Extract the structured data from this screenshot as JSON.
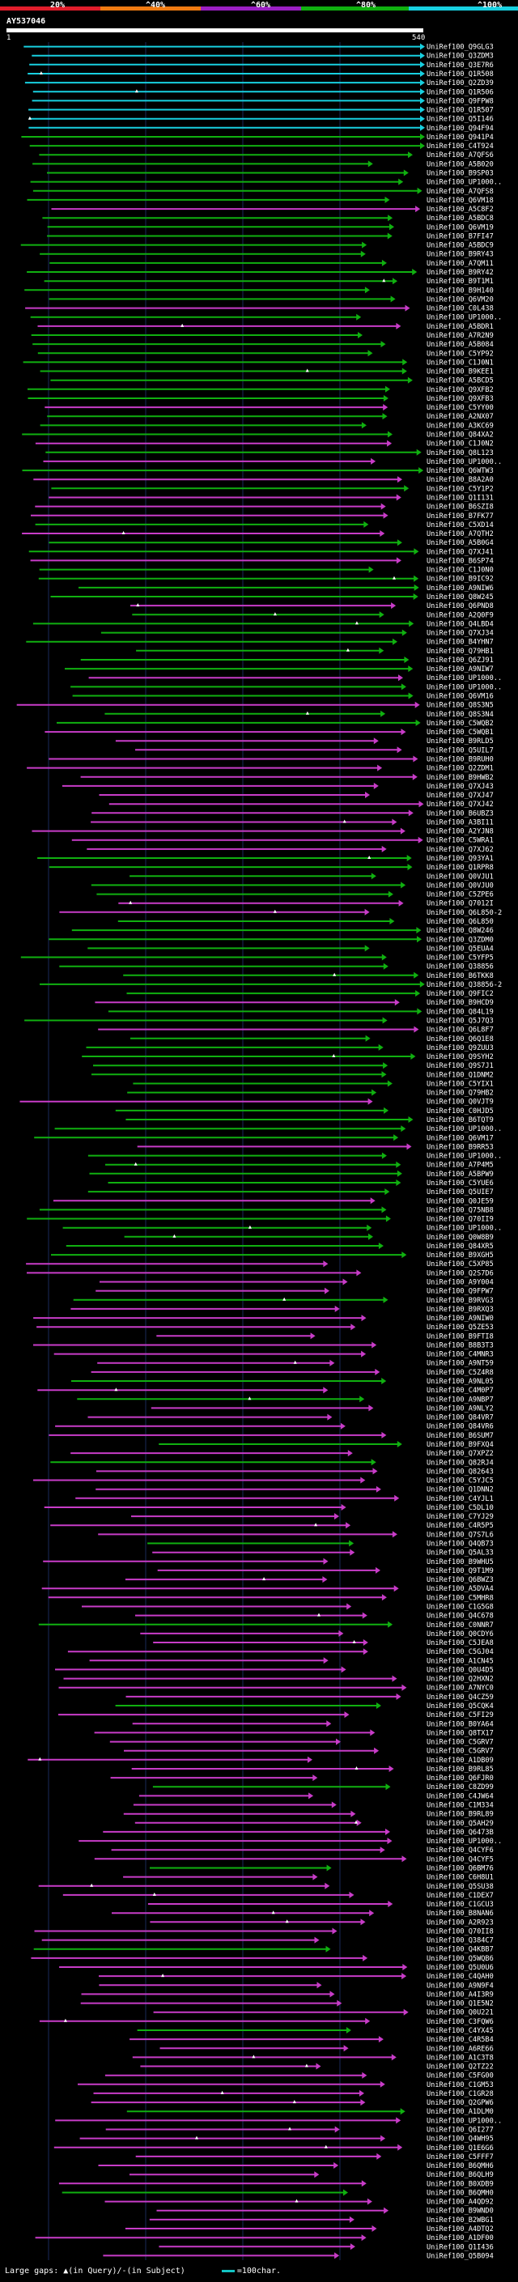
{
  "title": "AY537046",
  "scale": {
    "labels": [
      "20%",
      "^40%",
      "^60%",
      "^80%",
      "^100%"
    ]
  },
  "chart_data": {
    "type": "alignment",
    "query_start": 1,
    "query_end": 540,
    "identity_color_bands": [
      {
        "range": "<20%",
        "color": "#e11d2b"
      },
      {
        "range": "20-40%",
        "color": "#f07b12"
      },
      {
        "range": "40-60%",
        "color": "#9b1fc4"
      },
      {
        "range": "60-80%",
        "color": "#10b010"
      },
      {
        "range": "80-100%",
        "color": "#18d0e0"
      }
    ],
    "hits": [
      "UniRef100_Q9GLG3",
      "UniRef100_Q3ZDM3",
      "UniRef100_Q3E7R6",
      "UniRef100_Q1R508",
      "UniRef100_Q2ZD39",
      "UniRef100_Q1R506",
      "UniRef100_Q9FPW8",
      "UniRef100_Q1R507",
      "UniRef100_Q5I146",
      "UniRef100_Q94F94",
      "UniRef100_Q941P4",
      "UniRef100_C4T924",
      "UniRef100_A7QFS6",
      "UniRef100_A5B020",
      "UniRef100_B9SP03",
      "UniRef100_UP1000..",
      "UniRef100_A7QFS8",
      "UniRef100_Q6VM18",
      "UniRef100_A5C8F2",
      "UniRef100_A5BDC8",
      "UniRef100_Q6VM19",
      "UniRef100_B7FI47",
      "UniRef100_A5BDC9",
      "UniRef100_B9RY43",
      "UniRef100_A7QM11",
      "UniRef100_B9RY42",
      "UniRef100_B9T1M1",
      "UniRef100_B9H140",
      "UniRef100_Q6VM20",
      "UniRef100_C0L438",
      "UniRef100_UP1000..",
      "UniRef100_A5BDR1",
      "UniRef100_A7R2N9",
      "UniRef100_A5B084",
      "UniRef100_C5YP92",
      "UniRef100_C1J0N1",
      "UniRef100_B9KEE1",
      "UniRef100_A5BCD5",
      "UniRef100_Q9XFB2",
      "UniRef100_Q9XFB3",
      "UniRef100_C5YY00",
      "UniRef100_A2NX07",
      "UniRef100_A3KC69",
      "UniRef100_Q84XA2",
      "UniRef100_C1J0N2",
      "UniRef100_Q8L123",
      "UniRef100_UP1000..",
      "UniRef100_Q6WTW3",
      "UniRef100_B8A2A0",
      "UniRef100_C5Y1P2",
      "UniRef100_Q1I131",
      "UniRef100_B6SZI8",
      "UniRef100_B7FK77",
      "UniRef100_C5XD14",
      "UniRef100_A7QTH2",
      "UniRef100_A5B0G4",
      "UniRef100_Q7XJ41",
      "UniRef100_B6SP74",
      "UniRef100_C1J0N0",
      "UniRef100_B9IC92",
      "UniRef100_A9NIW6",
      "UniRef100_Q8W245",
      "UniRef100_Q6PND8",
      "UniRef100_A2Q0F9",
      "UniRef100_Q4LBD4",
      "UniRef100_Q7XJ34",
      "UniRef100_B4YHN7",
      "UniRef100_Q79HB1",
      "UniRef100_Q6ZJ91",
      "UniRef100_A9NIW7",
      "UniRef100_UP1000..",
      "UniRef100_UP1000..",
      "UniRef100_Q6VM16",
      "UniRef100_Q8S3N5",
      "UniRef100_Q8S3N4",
      "UniRef100_C5WQB2",
      "UniRef100_C5WQB1",
      "UniRef100_B9RLD5",
      "UniRef100_Q5UIL7",
      "UniRef100_B9RUH0",
      "UniRef100_Q2ZDM1",
      "UniRef100_B9HWB2",
      "UniRef100_Q7XJ43",
      "UniRef100_Q7XJ47",
      "UniRef100_Q7XJ42",
      "UniRef100_B6UBZ3",
      "UniRef100_A3BI11",
      "UniRef100_A2YJN8",
      "UniRef100_C5WRA1",
      "UniRef100_Q7XJ62",
      "UniRef100_Q93YA1",
      "UniRef100_Q1RPR8",
      "UniRef100_Q0VJU1",
      "UniRef100_Q0VJU0",
      "UniRef100_C5ZPE6",
      "UniRef100_Q7012I",
      "UniRef100_Q6L850-2",
      "UniRef100_Q6L850",
      "UniRef100_Q8W246",
      "UniRef100_Q3ZDM0",
      "UniRef100_Q5EUA4",
      "UniRef100_C5YFP5",
      "UniRef100_Q38856",
      "UniRef100_B6TKK8",
      "UniRef100_Q38856-2",
      "UniRef100_Q9FIC2",
      "UniRef100_B9HCD9",
      "UniRef100_Q84L19",
      "UniRef100_Q5J7Q3",
      "UniRef100_Q6L8F7",
      "UniRef100_Q6Q1E8",
      "UniRef100_Q9ZUU3",
      "UniRef100_Q9SYH2",
      "UniRef100_Q9S7J1",
      "UniRef100_Q1DNM2",
      "UniRef100_C5YIX1",
      "UniRef100_Q79HB2",
      "UniRef100_Q0VJT9",
      "UniRef100_C0HJD5",
      "UniRef100_B6TQT9",
      "UniRef100_UP1000..",
      "UniRef100_Q6VM17",
      "UniRef100_B9RR53",
      "UniRef100_UP1000..",
      "UniRef100_A7P4M5",
      "UniRef100_A5BPW9",
      "UniRef100_C5YUE6",
      "UniRef100_Q5UIE7",
      "UniRef100_Q0JE59",
      "UniRef100_Q75NB8",
      "UniRef100_Q70II9",
      "UniRef100_UP1000..",
      "UniRef100_Q0W8B9",
      "UniRef100_Q84XR5",
      "UniRef100_B9XGH5",
      "UniRef100_C5XP85",
      "UniRef100_Q2S7D6",
      "UniRef100_A9Y004",
      "UniRef100_Q9FPW7",
      "UniRef100_B9RVG3",
      "UniRef100_B9RXQ3",
      "UniRef100_A9NIW0",
      "UniRef100_Q5ZE53",
      "UniRef100_B9FTI8",
      "UniRef100_B8B3T3",
      "UniRef100_C4MNR3",
      "UniRef100_A9NT59",
      "UniRef100_C5Z4R8",
      "UniRef100_A9NL05",
      "UniRef100_C4M0P7",
      "UniRef100_A9NBP7",
      "UniRef100_A9NLY2",
      "UniRef100_Q84VR7",
      "UniRef100_Q84VR6",
      "UniRef100_B6SUM7",
      "UniRef100_B9FXQ4",
      "UniRef100_Q7XPZ2",
      "UniRef100_Q82RJ4",
      "UniRef100_Q82643",
      "UniRef100_C5YJC5",
      "UniRef100_Q1DNN2",
      "UniRef100_C4YJL1",
      "UniRef100_C5DL10",
      "UniRef100_C7YJ29",
      "UniRef100_C4R5P5",
      "UniRef100_Q7S7L6",
      "UniRef100_Q4QB73",
      "UniRef100_Q5AL33",
      "UniRef100_B9WHU5",
      "UniRef100_Q9T1M9",
      "UniRef100_Q6BWZ3",
      "UniRef100_A5DVA4",
      "UniRef100_C5MHR8",
      "UniRef100_C1G5G8",
      "UniRef100_Q4C678",
      "UniRef100_C0NNR7",
      "UniRef100_Q0CDY6",
      "UniRef100_C5JEA8",
      "UniRef100_C5GJ04",
      "UniRef100_A1CN45",
      "UniRef100_Q0U4D5",
      "UniRef100_Q2HXN2",
      "UniRef100_A7NYC0",
      "UniRef100_Q4CZ59",
      "UniRef100_Q5CQK4",
      "UniRef100_C5FI29",
      "UniRef100_B0YA64",
      "UniRef100_Q8TX17",
      "UniRef100_C5GRV7",
      "UniRef100_C5GRV7",
      "UniRef100_A1DB09",
      "UniRef100_B9RL85",
      "UniRef100_Q6FJR0",
      "UniRef100_C8ZD99",
      "UniRef100_C4JW64",
      "UniRef100_C1M334",
      "UniRef100_B9RL89",
      "UniRef100_Q5AH29",
      "UniRef100_Q6473B",
      "UniRef100_UP1000..",
      "UniRef100_Q4CYF6",
      "UniRef100_Q4CYF5",
      "UniRef100_Q6BM76",
      "UniRef100_C6H8U1",
      "UniRef100_Q5SU38",
      "UniRef100_C1DEX7",
      "UniRef100_C1GCU3",
      "UniRef100_B8NAN6",
      "UniRef100_A2R923",
      "UniRef100_Q70II8",
      "UniRef100_Q384C7",
      "UniRef100_Q4KBB7",
      "UniRef100_Q5WQB6",
      "UniRef100_Q5U0U6",
      "UniRef100_C4QAH0",
      "UniRef100_A9N9F4",
      "UniRef100_A4I3R9",
      "UniRef100_Q1E5N2",
      "UniRef100_Q0U221",
      "UniRef100_C3FQW6",
      "UniRef100_C4YX45",
      "UniRef100_C4R5B4",
      "UniRef100_A6RE66",
      "UniRef100_A1C3T8",
      "UniRef100_Q2TZ22",
      "UniRef100_C5FG00",
      "UniRef100_C1GM53",
      "UniRef100_C1GR28",
      "UniRef100_Q2GPW6",
      "UniRef100_A1DLM0",
      "UniRef100_UP1000..",
      "UniRef100_Q6I277",
      "UniRef100_Q4WH95",
      "UniRef100_Q1E6G6",
      "UniRef100_C5FFF7",
      "UniRef100_B6QMH6",
      "UniRef100_B6QLH9",
      "UniRef100_B0XDB9",
      "UniRef100_B6QMH0",
      "UniRef100_A4QD92",
      "UniRef100_B9WND0",
      "UniRef100_B2WBG1",
      "UniRef100_A4DTQ2",
      "UniRef100_A1DF00",
      "UniRef100_Q1I436",
      "UniRef100_Q5B094"
    ]
  },
  "legend": {
    "large_gaps_label": "Large gaps: ",
    "in_query_label": "(in Query)/",
    "in_subject_label": "(in Subject)",
    "scale_label": "=100char."
  }
}
